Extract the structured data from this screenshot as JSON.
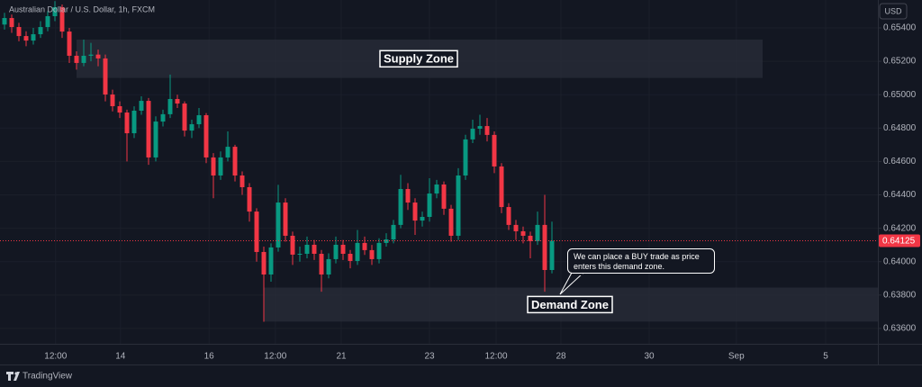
{
  "chart_data": {
    "type": "candlestick",
    "title": "Australian Dollar / U.S. Dollar, 1h, FXCM",
    "currency": "USD",
    "brand": "TradingView",
    "up_color": "#089981",
    "down_color": "#f23645",
    "grid": true,
    "ylim": [
      0.63508,
      0.65567
    ],
    "xlim": [
      -0.625,
      121.25
    ],
    "yticks": [
      {
        "value": 0.654,
        "label": "0.65400"
      },
      {
        "value": 0.652,
        "label": "0.65200"
      },
      {
        "value": 0.65,
        "label": "0.65000"
      },
      {
        "value": 0.648,
        "label": "0.64800"
      },
      {
        "value": 0.646,
        "label": "0.64600"
      },
      {
        "value": 0.644,
        "label": "0.64400"
      },
      {
        "value": 0.642,
        "label": "0.64200"
      },
      {
        "value": 0.64,
        "label": "0.64000"
      },
      {
        "value": 0.638,
        "label": "0.63800"
      },
      {
        "value": 0.636,
        "label": "0.63600"
      }
    ],
    "xticks": [
      {
        "value": 7.1,
        "label": "12:00"
      },
      {
        "value": 16.1,
        "label": "14"
      },
      {
        "value": 28.4,
        "label": "16"
      },
      {
        "value": 37.6,
        "label": "12:00"
      },
      {
        "value": 46.75,
        "label": "21"
      },
      {
        "value": 59,
        "label": "23"
      },
      {
        "value": 68.25,
        "label": "12:00"
      },
      {
        "value": 77.25,
        "label": "28"
      },
      {
        "value": 89.5,
        "label": "30"
      },
      {
        "value": 101.6,
        "label": "Sep"
      },
      {
        "value": 114,
        "label": "5"
      }
    ],
    "last_price": 0.64125,
    "zones": [
      {
        "label": "Supply Zone",
        "top": 0.6533,
        "bottom": 0.651,
        "start": 10,
        "end": 105.25
      },
      {
        "label": "Demand Zone",
        "top": 0.63845,
        "bottom": 0.63641,
        "start": 36,
        "end": 121.25
      }
    ],
    "annotation": "We can place a BUY trade as price enters this demand zone.",
    "candles": [
      [
        0.6542,
        0.6549,
        0.6539,
        0.65459
      ],
      [
        0.65459,
        0.6548,
        0.6537,
        0.65405
      ],
      [
        0.65405,
        0.6543,
        0.6532,
        0.65351
      ],
      [
        0.65351,
        0.6538,
        0.6529,
        0.65324
      ],
      [
        0.65324,
        0.654,
        0.653,
        0.65362
      ],
      [
        0.65362,
        0.6544,
        0.6534,
        0.65405
      ],
      [
        0.65405,
        0.655,
        0.6538,
        0.6547
      ],
      [
        0.6547,
        0.6556,
        0.6544,
        0.65524
      ],
      [
        0.65524,
        0.6554,
        0.6534,
        0.65378
      ],
      [
        0.65378,
        0.654,
        0.6519,
        0.65233
      ],
      [
        0.65233,
        0.6526,
        0.6515,
        0.6519
      ],
      [
        0.6519,
        0.6533,
        0.6517,
        0.65233
      ],
      [
        0.65233,
        0.6531,
        0.652,
        0.6524
      ],
      [
        0.6524,
        0.6527,
        0.6517,
        0.65217
      ],
      [
        0.65217,
        0.6524,
        0.6496,
        0.65001
      ],
      [
        0.65001,
        0.6503,
        0.649,
        0.64931
      ],
      [
        0.64931,
        0.6496,
        0.6486,
        0.64893
      ],
      [
        0.64893,
        0.6491,
        0.646,
        0.64769
      ],
      [
        0.64769,
        0.6493,
        0.6474,
        0.64904
      ],
      [
        0.64904,
        0.6499,
        0.6488,
        0.64963
      ],
      [
        0.64963,
        0.6498,
        0.6458,
        0.64624
      ],
      [
        0.64624,
        0.6487,
        0.646,
        0.64839
      ],
      [
        0.64839,
        0.6491,
        0.6481,
        0.64883
      ],
      [
        0.64883,
        0.6512,
        0.6486,
        0.64974
      ],
      [
        0.64974,
        0.65,
        0.6492,
        0.64947
      ],
      [
        0.64947,
        0.6496,
        0.6475,
        0.64785
      ],
      [
        0.64785,
        0.6485,
        0.6474,
        0.64823
      ],
      [
        0.64823,
        0.6492,
        0.648,
        0.64877
      ],
      [
        0.64877,
        0.6489,
        0.6459,
        0.64624
      ],
      [
        0.64624,
        0.6465,
        0.6438,
        0.64516
      ],
      [
        0.64516,
        0.6466,
        0.6449,
        0.64624
      ],
      [
        0.64624,
        0.6478,
        0.646,
        0.64688
      ],
      [
        0.64688,
        0.647,
        0.6448,
        0.64516
      ],
      [
        0.64516,
        0.6454,
        0.644,
        0.64446
      ],
      [
        0.64446,
        0.6447,
        0.6424,
        0.643
      ],
      [
        0.643,
        0.6432,
        0.64,
        0.64058
      ],
      [
        0.64058,
        0.6409,
        0.6364,
        0.63923
      ],
      [
        0.63923,
        0.6411,
        0.6388,
        0.64085
      ],
      [
        0.64085,
        0.6446,
        0.6406,
        0.64354
      ],
      [
        0.64354,
        0.6438,
        0.6412,
        0.64155
      ],
      [
        0.64155,
        0.6418,
        0.6398,
        0.64042
      ],
      [
        0.64042,
        0.6409,
        0.64,
        0.64047
      ],
      [
        0.64047,
        0.6415,
        0.6402,
        0.64101
      ],
      [
        0.64101,
        0.6413,
        0.6401,
        0.64047
      ],
      [
        0.64047,
        0.6407,
        0.6382,
        0.63923
      ],
      [
        0.63923,
        0.6405,
        0.639,
        0.64015
      ],
      [
        0.64015,
        0.6415,
        0.6399,
        0.64101
      ],
      [
        0.64101,
        0.6413,
        0.6401,
        0.64047
      ],
      [
        0.64047,
        0.6407,
        0.6396,
        0.64004
      ],
      [
        0.64004,
        0.6419,
        0.6398,
        0.64112
      ],
      [
        0.64112,
        0.6415,
        0.6404,
        0.64069
      ],
      [
        0.64069,
        0.641,
        0.6398,
        0.64015
      ],
      [
        0.64015,
        0.6414,
        0.6399,
        0.64112
      ],
      [
        0.64112,
        0.6417,
        0.6409,
        0.64133
      ],
      [
        0.64133,
        0.6425,
        0.6411,
        0.6422
      ],
      [
        0.6422,
        0.6452,
        0.642,
        0.64435
      ],
      [
        0.64435,
        0.6447,
        0.6431,
        0.64354
      ],
      [
        0.64354,
        0.6438,
        0.6416,
        0.64246
      ],
      [
        0.64246,
        0.643,
        0.6421,
        0.64268
      ],
      [
        0.64268,
        0.645,
        0.6424,
        0.64408
      ],
      [
        0.64408,
        0.6449,
        0.6438,
        0.64462
      ],
      [
        0.64462,
        0.6448,
        0.6428,
        0.64317
      ],
      [
        0.64317,
        0.6434,
        0.6412,
        0.64155
      ],
      [
        0.64155,
        0.6456,
        0.6413,
        0.64516
      ],
      [
        0.64516,
        0.6476,
        0.6449,
        0.64732
      ],
      [
        0.64732,
        0.6485,
        0.6471,
        0.64796
      ],
      [
        0.64796,
        0.6488,
        0.6476,
        0.64812
      ],
      [
        0.64812,
        0.6486,
        0.6472,
        0.64759
      ],
      [
        0.64759,
        0.6478,
        0.6453,
        0.6457
      ],
      [
        0.6457,
        0.6459,
        0.6429,
        0.64327
      ],
      [
        0.64327,
        0.6435,
        0.6419,
        0.6422
      ],
      [
        0.6422,
        0.6425,
        0.6413,
        0.64182
      ],
      [
        0.64182,
        0.6421,
        0.6411,
        0.64155
      ],
      [
        0.64155,
        0.6418,
        0.6402,
        0.64123
      ],
      [
        0.64123,
        0.643,
        0.641,
        0.6422
      ],
      [
        0.6422,
        0.644,
        0.6382,
        0.6395
      ],
      [
        0.6395,
        0.6424,
        0.6393,
        0.64125
      ]
    ]
  }
}
